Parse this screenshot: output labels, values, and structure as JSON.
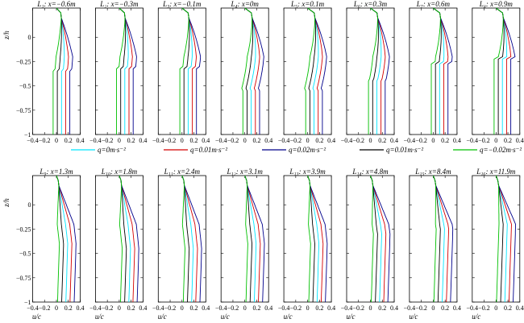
{
  "ylabel_top": "z/h",
  "ylabel_bottom": "z/h",
  "xlabel": "u/c",
  "xticks": [
    "−0.4",
    "−0.2",
    "0",
    "0.2",
    "0.4"
  ],
  "yticks": [
    "0",
    "−0.25",
    "−0.5",
    "−0.75",
    "−1"
  ],
  "legend": [
    {
      "label": "q=0m·s⁻²",
      "color": "#00e5ff"
    },
    {
      "label": "q=0.01m·s⁻²",
      "color": "#d40000"
    },
    {
      "label": "q=0.02m·s⁻²",
      "color": "#00008b"
    },
    {
      "label": "q=0.01m·s⁻²",
      "color": "#000000"
    },
    {
      "label": "q=−0.02m·s⁻²",
      "color": "#00c000"
    }
  ],
  "chart_data": {
    "type": "line",
    "xlim": [
      -0.4,
      0.4
    ],
    "ylim": [
      -1,
      0.3
    ],
    "panels": [
      {
        "title": "L₁: x=−0.6m",
        "shape": "cmp",
        "amp": 0.1,
        "depth": -0.35
      },
      {
        "title": "L₂: x=−0.3m",
        "shape": "cmp",
        "amp": 0.12,
        "depth": -0.3
      },
      {
        "title": "L₃: x=−0.1m",
        "shape": "cmp",
        "amp": 0.14,
        "depth": -0.3
      },
      {
        "title": "L₄: x=0m",
        "shape": "cmp",
        "amp": 0.15,
        "depth": -0.55
      },
      {
        "title": "L₅: x=0.1m",
        "shape": "cmp",
        "amp": 0.15,
        "depth": -0.55
      },
      {
        "title": "L₆: x=0.3m",
        "shape": "cmp",
        "amp": 0.15,
        "depth": -0.45
      },
      {
        "title": "L₇: x=0.6m",
        "shape": "cmp",
        "amp": 0.15,
        "depth": -0.25
      },
      {
        "title": "L₈: x=0.9m",
        "shape": "cmp",
        "amp": 0.15,
        "depth": -0.2
      },
      {
        "title": "L₉: x=1.3m",
        "shape": "jet",
        "amp": 0.15,
        "depth": -0.4
      },
      {
        "title": "L₁₀: x=1.8m",
        "shape": "jet",
        "amp": 0.15,
        "depth": -0.45
      },
      {
        "title": "L₁₁: x=2.4m",
        "shape": "jet",
        "amp": 0.15,
        "depth": -0.45
      },
      {
        "title": "L₁₂: x=3.1m",
        "shape": "jet",
        "amp": 0.15,
        "depth": -0.4
      },
      {
        "title": "L₁₃: x=3.9m",
        "shape": "jet",
        "amp": 0.15,
        "depth": -0.4
      },
      {
        "title": "L₁₄: x=4.8m",
        "shape": "jet",
        "amp": 0.15,
        "depth": -0.3
      },
      {
        "title": "L₁₅: x=8.4m",
        "shape": "jet",
        "amp": 0.15,
        "depth": -0.25
      },
      {
        "title": "L₁₆: x=11.9m",
        "shape": "jet",
        "amp": 0.15,
        "depth": -0.2
      }
    ],
    "series": [
      {
        "color": "#00e5ff",
        "offset": 0.04
      },
      {
        "color": "#d40000",
        "offset": 0.11
      },
      {
        "color": "#00008b",
        "offset": 0.18
      },
      {
        "color": "#000000",
        "offset": -0.03
      },
      {
        "color": "#00c000",
        "offset": -0.1
      }
    ]
  }
}
